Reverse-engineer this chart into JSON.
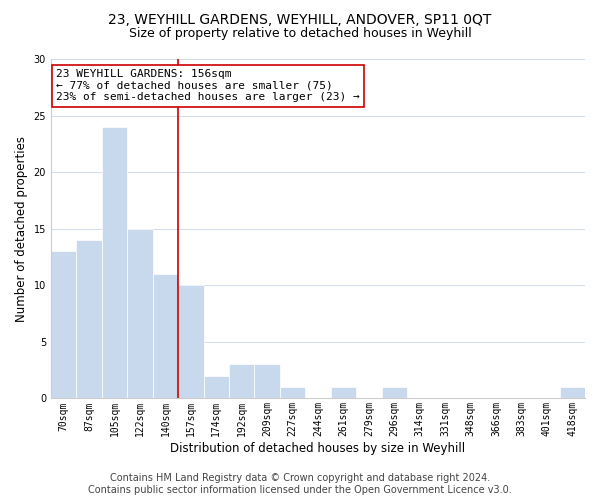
{
  "title1": "23, WEYHILL GARDENS, WEYHILL, ANDOVER, SP11 0QT",
  "title2": "Size of property relative to detached houses in Weyhill",
  "xlabel": "Distribution of detached houses by size in Weyhill",
  "ylabel": "Number of detached properties",
  "bins": [
    "70sqm",
    "87sqm",
    "105sqm",
    "122sqm",
    "140sqm",
    "157sqm",
    "174sqm",
    "192sqm",
    "209sqm",
    "227sqm",
    "244sqm",
    "261sqm",
    "279sqm",
    "296sqm",
    "314sqm",
    "331sqm",
    "348sqm",
    "366sqm",
    "383sqm",
    "401sqm",
    "418sqm"
  ],
  "values": [
    13,
    14,
    24,
    15,
    11,
    10,
    2,
    3,
    3,
    1,
    0,
    1,
    0,
    1,
    0,
    0,
    0,
    0,
    0,
    0,
    1
  ],
  "bar_color": "#c9d9ed",
  "bar_edge_color": "#ffffff",
  "vline_x_index": 5,
  "vline_color": "#cc0000",
  "ylim": [
    0,
    30
  ],
  "yticks": [
    0,
    5,
    10,
    15,
    20,
    25,
    30
  ],
  "annotation_text": "23 WEYHILL GARDENS: 156sqm\n← 77% of detached houses are smaller (75)\n23% of semi-detached houses are larger (23) →",
  "annotation_box_color": "#ffffff",
  "annotation_box_edge_color": "#cc0000",
  "footer1": "Contains HM Land Registry data © Crown copyright and database right 2024.",
  "footer2": "Contains public sector information licensed under the Open Government Licence v3.0.",
  "background_color": "#ffffff",
  "grid_color": "#d0dce8",
  "title1_fontsize": 10,
  "title2_fontsize": 9,
  "annotation_fontsize": 8,
  "footer_fontsize": 7,
  "tick_fontsize": 7,
  "axis_label_fontsize": 8.5
}
